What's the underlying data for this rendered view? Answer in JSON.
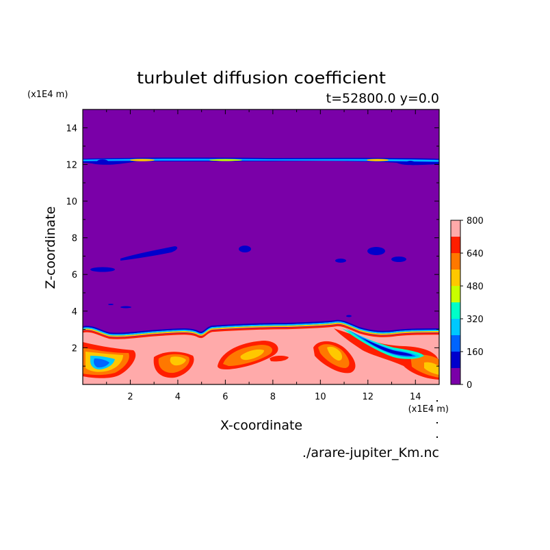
{
  "chart_data": {
    "type": "heatmap",
    "title": "turbulet diffusion coefficient",
    "subtitle": "t=52800.0 y=0.0",
    "xlabel": "X-coordinate",
    "ylabel": "Z-coordinate",
    "x_unit": "(x1E4 m)",
    "y_unit": "(x1E4 m)",
    "footer": "./arare-jupiter_Km.nc",
    "xlim": [
      0,
      15
    ],
    "ylim": [
      0,
      15
    ],
    "x_ticks": [
      "2",
      "4",
      "6",
      "8",
      "10",
      "12",
      "14"
    ],
    "y_ticks": [
      "2",
      "4",
      "6",
      "8",
      "10",
      "12",
      "14"
    ],
    "colorbar": {
      "levels": [
        0,
        80,
        160,
        240,
        320,
        400,
        480,
        560,
        640,
        720,
        800
      ],
      "tick_labels": [
        "0",
        "160",
        "320",
        "480",
        "640",
        "800"
      ],
      "colors": [
        "#7a00a8",
        "#0000cc",
        "#0064ff",
        "#00c8ff",
        "#00ffc8",
        "#c8ff00",
        "#ffc800",
        "#ff7800",
        "#ff1e00",
        "#ffaaaa"
      ]
    },
    "background_color": "#7a00a8",
    "features": [
      {
        "desc": "thin high-value band",
        "z": 12.2,
        "x_range": [
          0,
          15
        ],
        "max_value": 600
      },
      {
        "desc": "boundary layer top",
        "z": 3.0
      },
      {
        "desc": "blobs in boundary layer",
        "value_range": [
          0,
          720
        ]
      }
    ]
  }
}
